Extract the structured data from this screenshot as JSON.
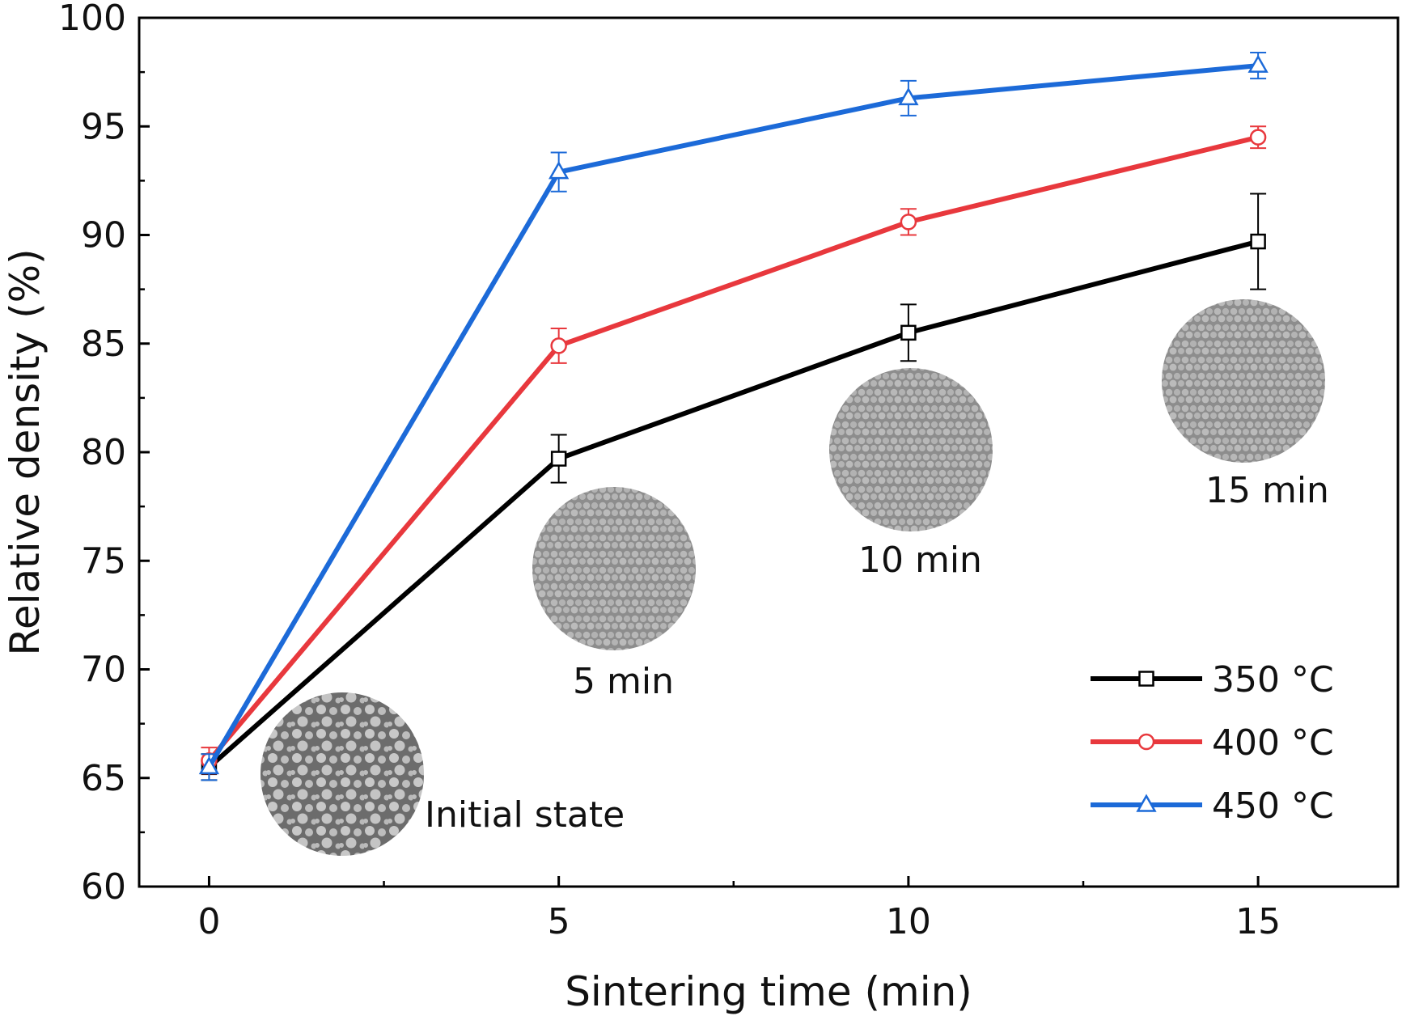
{
  "chart_data": {
    "type": "line",
    "xlabel": "Sintering time (min)",
    "ylabel": "Relative density (%)",
    "xlim": [
      -1,
      17
    ],
    "ylim": [
      60,
      100
    ],
    "xticks": [
      0,
      5,
      10,
      15
    ],
    "yticks": [
      60,
      65,
      70,
      75,
      80,
      85,
      90,
      95,
      100
    ],
    "x_minor_ticks": [
      2.5,
      7.5,
      12.5
    ],
    "y_minor_ticks": [
      62.5,
      67.5,
      72.5,
      77.5,
      82.5,
      87.5,
      92.5,
      97.5
    ],
    "grid": false,
    "legend_position": "bottom-right",
    "x": [
      0,
      5,
      10,
      15
    ],
    "series": [
      {
        "name": "350 °C",
        "color": "#000000",
        "marker": "square",
        "values": [
          65.5,
          79.7,
          85.5,
          89.7
        ],
        "errors": [
          0.6,
          1.1,
          1.3,
          2.2
        ]
      },
      {
        "name": "400 °C",
        "color": "#e8383d",
        "marker": "circle",
        "values": [
          65.8,
          84.9,
          90.6,
          94.5
        ],
        "errors": [
          0.6,
          0.8,
          0.6,
          0.5
        ]
      },
      {
        "name": "450 °C",
        "color": "#1c6ad8",
        "marker": "triangle",
        "values": [
          65.5,
          92.9,
          96.3,
          97.8
        ],
        "errors": [
          0.6,
          0.9,
          0.8,
          0.6
        ]
      }
    ],
    "insets": [
      {
        "label": "Initial state",
        "x": 0
      },
      {
        "label": "5 min",
        "x": 5
      },
      {
        "label": "10 min",
        "x": 10
      },
      {
        "label": "15 min",
        "x": 15
      }
    ]
  }
}
